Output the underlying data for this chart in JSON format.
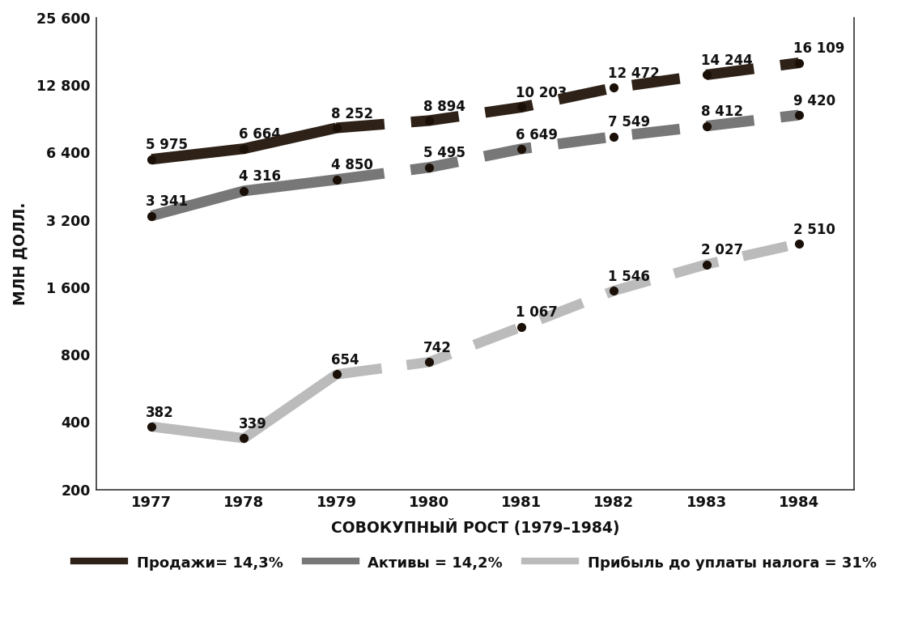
{
  "years": [
    1977,
    1978,
    1979,
    1980,
    1981,
    1982,
    1983,
    1984
  ],
  "sales": [
    5975,
    6664,
    8252,
    8894,
    10203,
    12472,
    14244,
    16109
  ],
  "assets": [
    3341,
    4316,
    4850,
    5495,
    6649,
    7549,
    8412,
    9420
  ],
  "profit": [
    382,
    339,
    654,
    742,
    1067,
    1546,
    2027,
    2510
  ],
  "sales_color": "#2d2118",
  "assets_color": "#777777",
  "profit_color": "#bbbbbb",
  "marker_color": "#1a1008",
  "ylabel": "МЛН ДОЛЛ.",
  "xlabel": "СОВОКУПНЫЙ РОСТ (1979–1984)",
  "ylim_min": 200,
  "ylim_max": 25600,
  "legend_sales": "Продажи= 14,3%",
  "legend_assets": "Активы = 14,2%",
  "legend_profit": "Прибыль до уплаты налога = 31%",
  "bg_color": "#ffffff",
  "sales_labels": [
    "5 975",
    "6 664",
    "8 252",
    "8 894",
    "10 203",
    "12 472",
    "14 244",
    "16 109"
  ],
  "assets_labels": [
    "3 341",
    "4 316",
    "4 850",
    "5 495",
    "6 649",
    "7 549",
    "8 412",
    "9 420"
  ],
  "profit_labels": [
    "382",
    "339",
    "654",
    "742",
    "1 067",
    "1 546",
    "2 027",
    "2 510"
  ]
}
